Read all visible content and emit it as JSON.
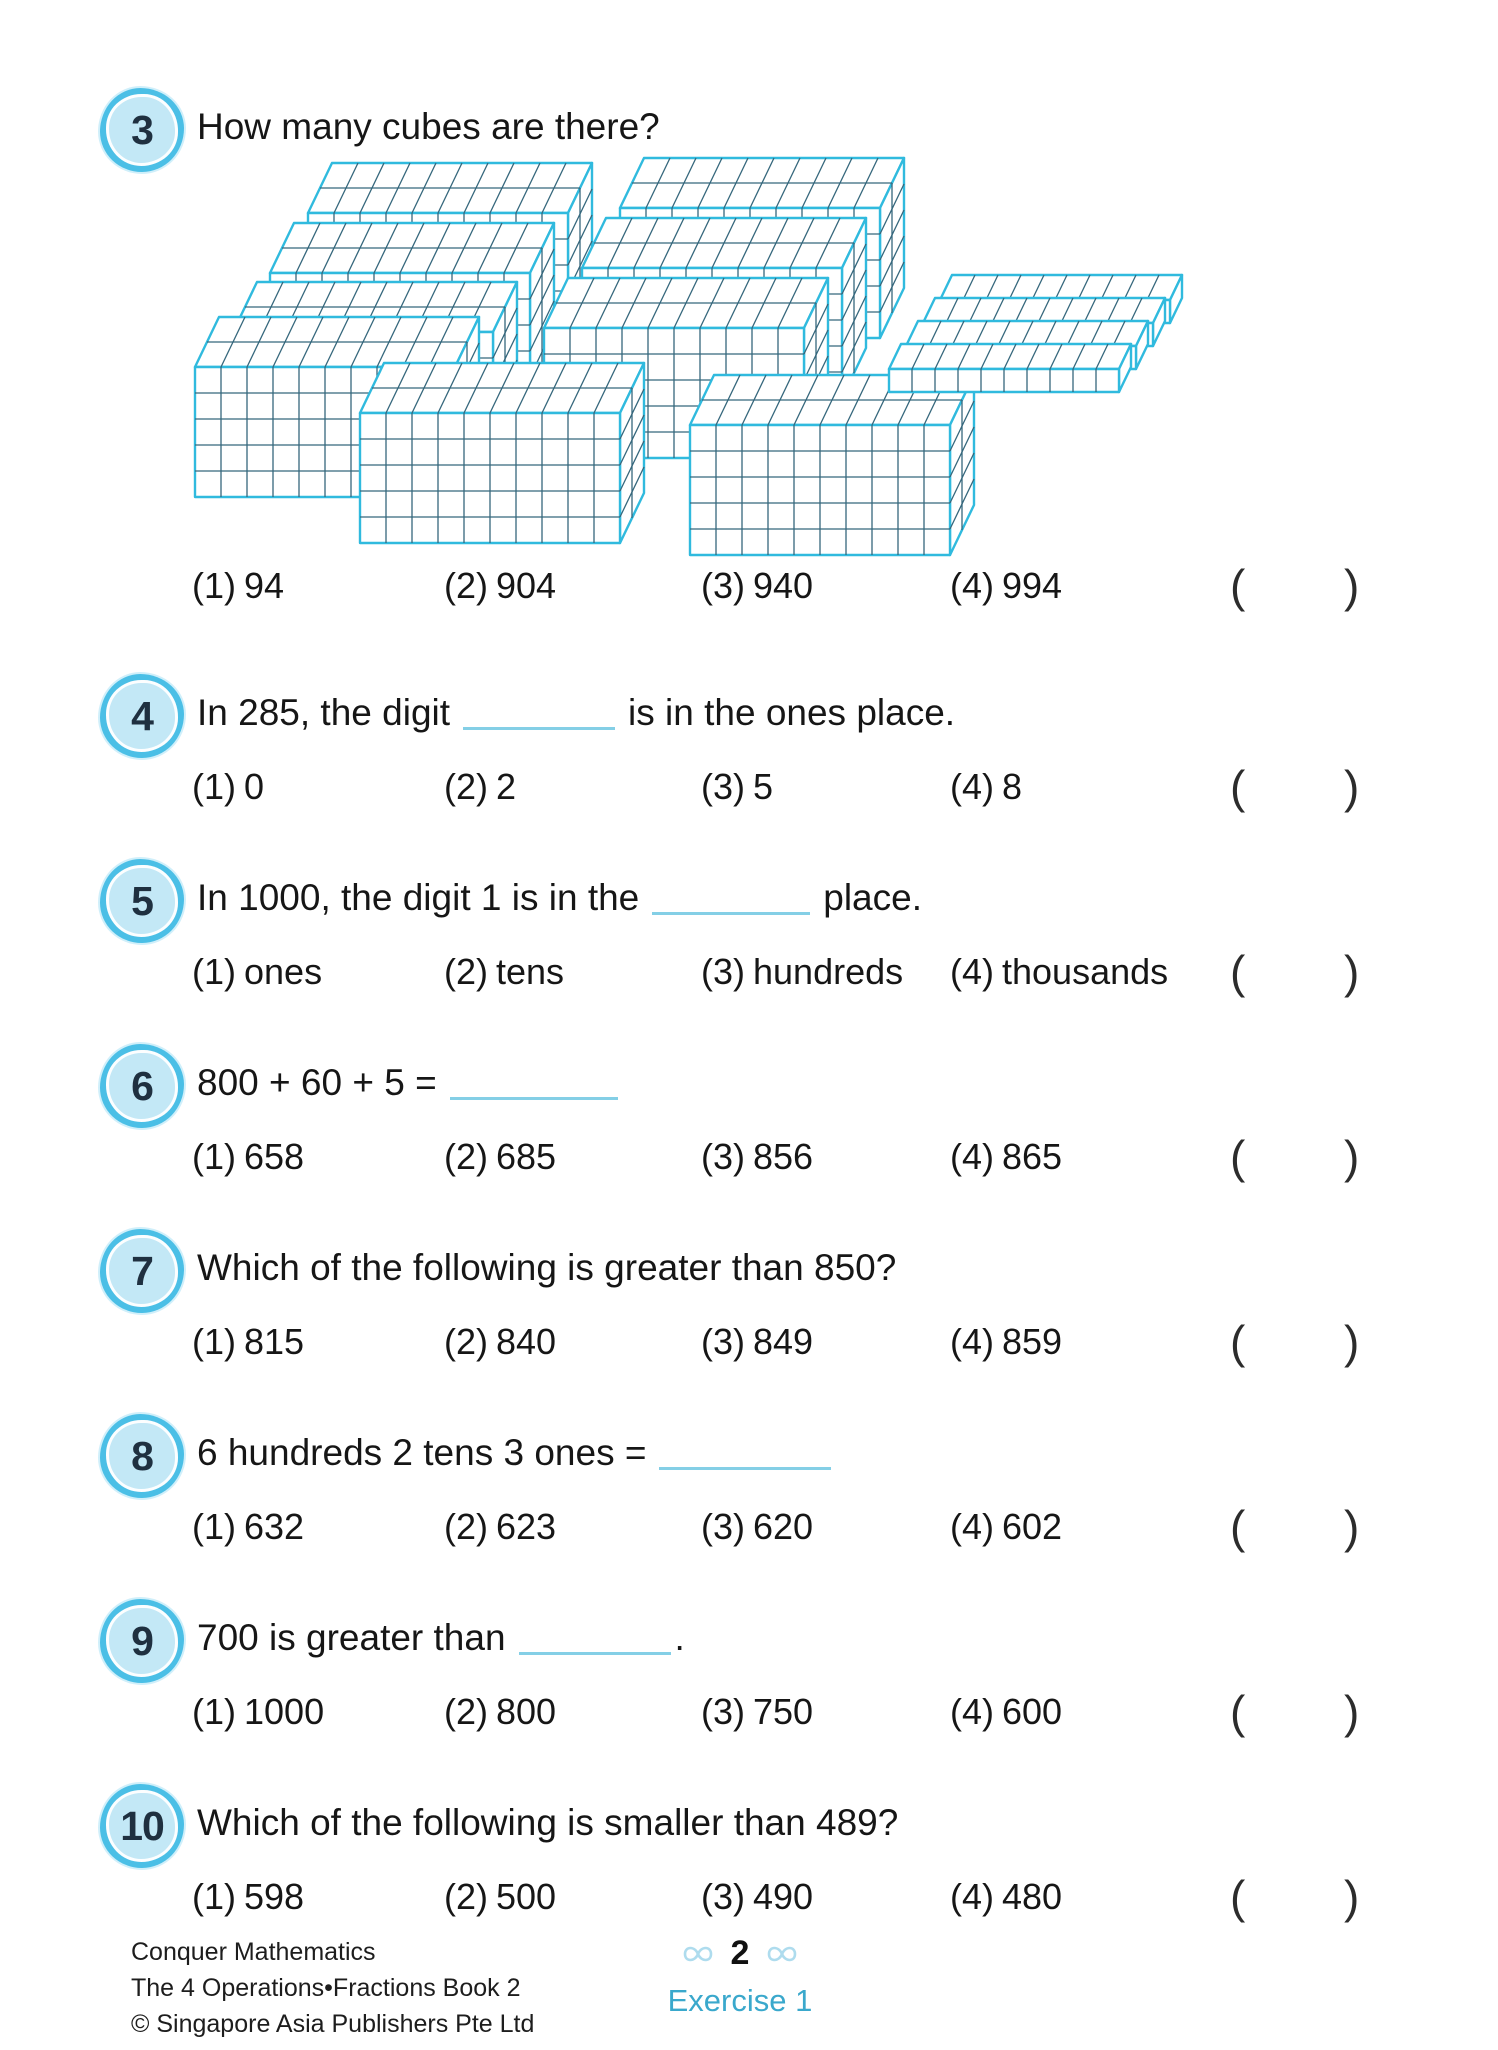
{
  "page": {
    "answer_slot": {
      "open": "(",
      "close": ")"
    },
    "footer": {
      "series": "Conquer Mathematics",
      "book": "The 4 Operations•Fractions Book 2",
      "copyright": "© Singapore Asia Publishers Pte Ltd",
      "page_number": "2",
      "exercise": "Exercise 1"
    }
  },
  "colors": {
    "badge_outer": "#4bbfe6",
    "badge_inner": "#c3e8f6",
    "cube_edge": "#30bade",
    "cube_grid": "#35677c",
    "blank_line": "#84cfe6",
    "exercise_text": "#3aa8cc",
    "ornament": "#aedcee"
  },
  "option_labels": [
    "(1)",
    "(2)",
    "(3)",
    "(4)"
  ],
  "questions": [
    {
      "number": "3",
      "text_before": "How many cubes are there?",
      "text_after": "",
      "has_blank": false,
      "image": {
        "type": "base-ten-blocks",
        "blocks_of_100": 9,
        "rods_of_10": 4
      },
      "options": [
        "94",
        "904",
        "940",
        "994"
      ]
    },
    {
      "number": "4",
      "text_before": "In 285, the digit",
      "text_after": "is in the ones place.",
      "has_blank": true,
      "options": [
        "0",
        "2",
        "5",
        "8"
      ]
    },
    {
      "number": "5",
      "text_before": "In 1000, the digit 1 is in the",
      "text_after": "place.",
      "has_blank": true,
      "options": [
        "ones",
        "tens",
        "hundreds",
        "thousands"
      ]
    },
    {
      "number": "6",
      "text_before": "800 + 60 + 5 =",
      "text_after": "",
      "has_blank": true,
      "options": [
        "658",
        "685",
        "856",
        "865"
      ]
    },
    {
      "number": "7",
      "text_before": "Which of the following is greater than 850?",
      "text_after": "",
      "has_blank": false,
      "options": [
        "815",
        "840",
        "849",
        "859"
      ]
    },
    {
      "number": "8",
      "text_before": "6 hundreds 2 tens 3 ones =",
      "text_after": "",
      "has_blank": true,
      "options": [
        "632",
        "623",
        "620",
        "602"
      ]
    },
    {
      "number": "9",
      "text_before": "700 is greater than",
      "text_after": ".",
      "has_blank": true,
      "options": [
        "1000",
        "800",
        "750",
        "600"
      ]
    },
    {
      "number": "10",
      "text_before": "Which of the following is smaller than 489?",
      "text_after": "",
      "has_blank": false,
      "options": [
        "598",
        "500",
        "490",
        "480"
      ]
    }
  ]
}
